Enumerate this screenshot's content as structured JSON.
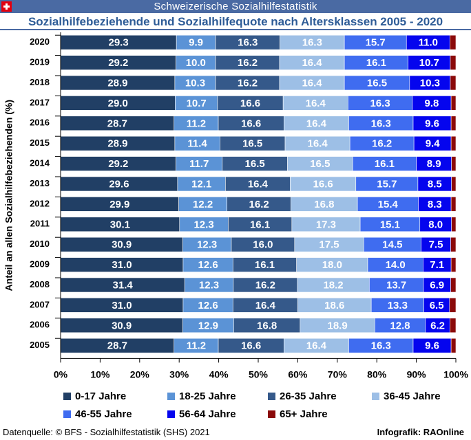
{
  "header": {
    "banner_title": "Schweizerische Sozialhilfestatistik",
    "flag_icon": "swiss-flag-icon"
  },
  "chart_data": {
    "type": "bar",
    "orientation": "horizontal",
    "stacked": true,
    "percent_stacked": true,
    "title": "Sozialhilfebeziehende und Sozialhilfequote nach Altersklassen 2005 - 2020",
    "xlabel": "",
    "ylabel": "Anteil an allen Sozialhilfebeziehenden (%)",
    "xlim": [
      0,
      100
    ],
    "xticks": [
      "0%",
      "10%",
      "20%",
      "30%",
      "40%",
      "50%",
      "60%",
      "70%",
      "80%",
      "90%",
      "100%"
    ],
    "categories": [
      "2020",
      "2019",
      "2018",
      "2017",
      "2016",
      "2015",
      "2014",
      "2013",
      "2012",
      "2011",
      "2010",
      "2009",
      "2008",
      "2007",
      "2006",
      "2005"
    ],
    "series": [
      {
        "name": "0-17 Jahre",
        "color": "#213f65",
        "values": [
          29.3,
          29.2,
          28.9,
          29.0,
          28.7,
          28.9,
          29.2,
          29.6,
          29.9,
          30.1,
          30.9,
          31.0,
          31.4,
          31.0,
          30.9,
          28.7
        ]
      },
      {
        "name": "18-25 Jahre",
        "color": "#5b93d6",
        "values": [
          9.9,
          10.0,
          10.3,
          10.7,
          11.2,
          11.4,
          11.7,
          12.1,
          12.2,
          12.3,
          12.3,
          12.6,
          12.3,
          12.6,
          12.9,
          11.2
        ]
      },
      {
        "name": "26-35 Jahre",
        "color": "#35598a",
        "values": [
          16.3,
          16.2,
          16.2,
          16.6,
          16.6,
          16.5,
          16.5,
          16.4,
          16.2,
          16.1,
          16.0,
          16.1,
          16.2,
          16.4,
          16.8,
          16.6
        ]
      },
      {
        "name": "36-45 Jahre",
        "color": "#9dbfe6",
        "values": [
          16.3,
          16.4,
          16.4,
          16.4,
          16.4,
          16.4,
          16.5,
          16.6,
          16.8,
          17.3,
          17.5,
          18.0,
          18.2,
          18.6,
          18.9,
          16.4
        ]
      },
      {
        "name": "46-55 Jahre",
        "color": "#3f6cf0",
        "values": [
          15.7,
          16.1,
          16.5,
          16.3,
          16.3,
          16.2,
          16.1,
          15.7,
          15.4,
          15.1,
          14.5,
          14.0,
          13.7,
          13.3,
          12.8,
          16.3
        ]
      },
      {
        "name": "56-64 Jahre",
        "color": "#0505ee",
        "values": [
          11.0,
          10.7,
          10.3,
          9.8,
          9.6,
          9.4,
          8.9,
          8.5,
          8.3,
          8.0,
          7.5,
          7.1,
          6.9,
          6.5,
          6.2,
          9.6
        ]
      },
      {
        "name": "65+ Jahre",
        "color": "#8b0a0a",
        "values": [
          1.5,
          1.4,
          1.4,
          1.2,
          1.2,
          1.2,
          1.1,
          1.1,
          1.2,
          1.1,
          1.3,
          1.2,
          1.3,
          1.6,
          1.5,
          1.2
        ]
      }
    ],
    "legend_position": "bottom",
    "grid": false
  },
  "footer": {
    "source": "Datenquelle: © BFS - Sozialhilfestatistik (SHS) 2021",
    "credit": "Infografik: RAOnline"
  }
}
